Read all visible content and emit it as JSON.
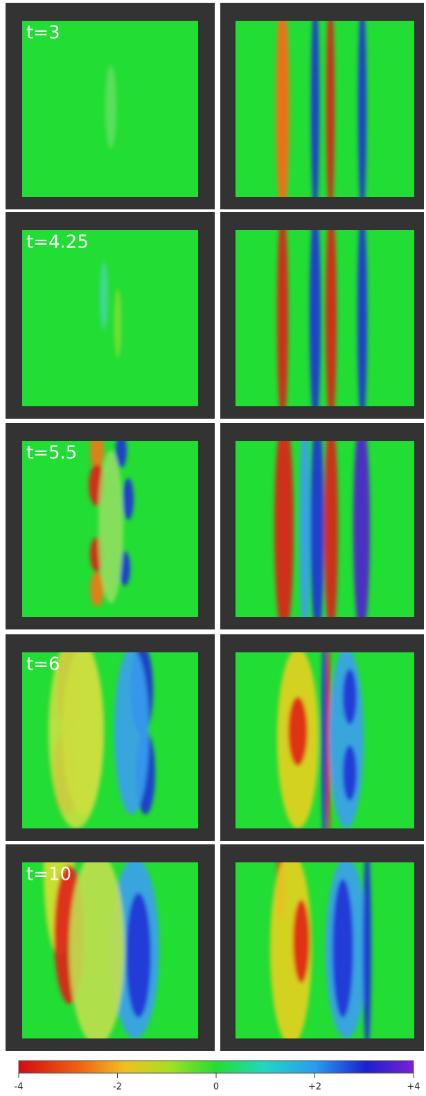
{
  "panels": [
    {
      "label": "t=3"
    },
    {
      "label": "t=4.25"
    },
    {
      "label": "t=5.5"
    },
    {
      "label": "t=6"
    },
    {
      "label": "t=10"
    }
  ],
  "colorbar": {
    "range": [
      -4,
      4
    ],
    "ticks": [
      -4,
      -2,
      0,
      {
        "value": 2,
        "label": "+2"
      },
      {
        "value": 4,
        "label": "+4"
      }
    ]
  }
}
